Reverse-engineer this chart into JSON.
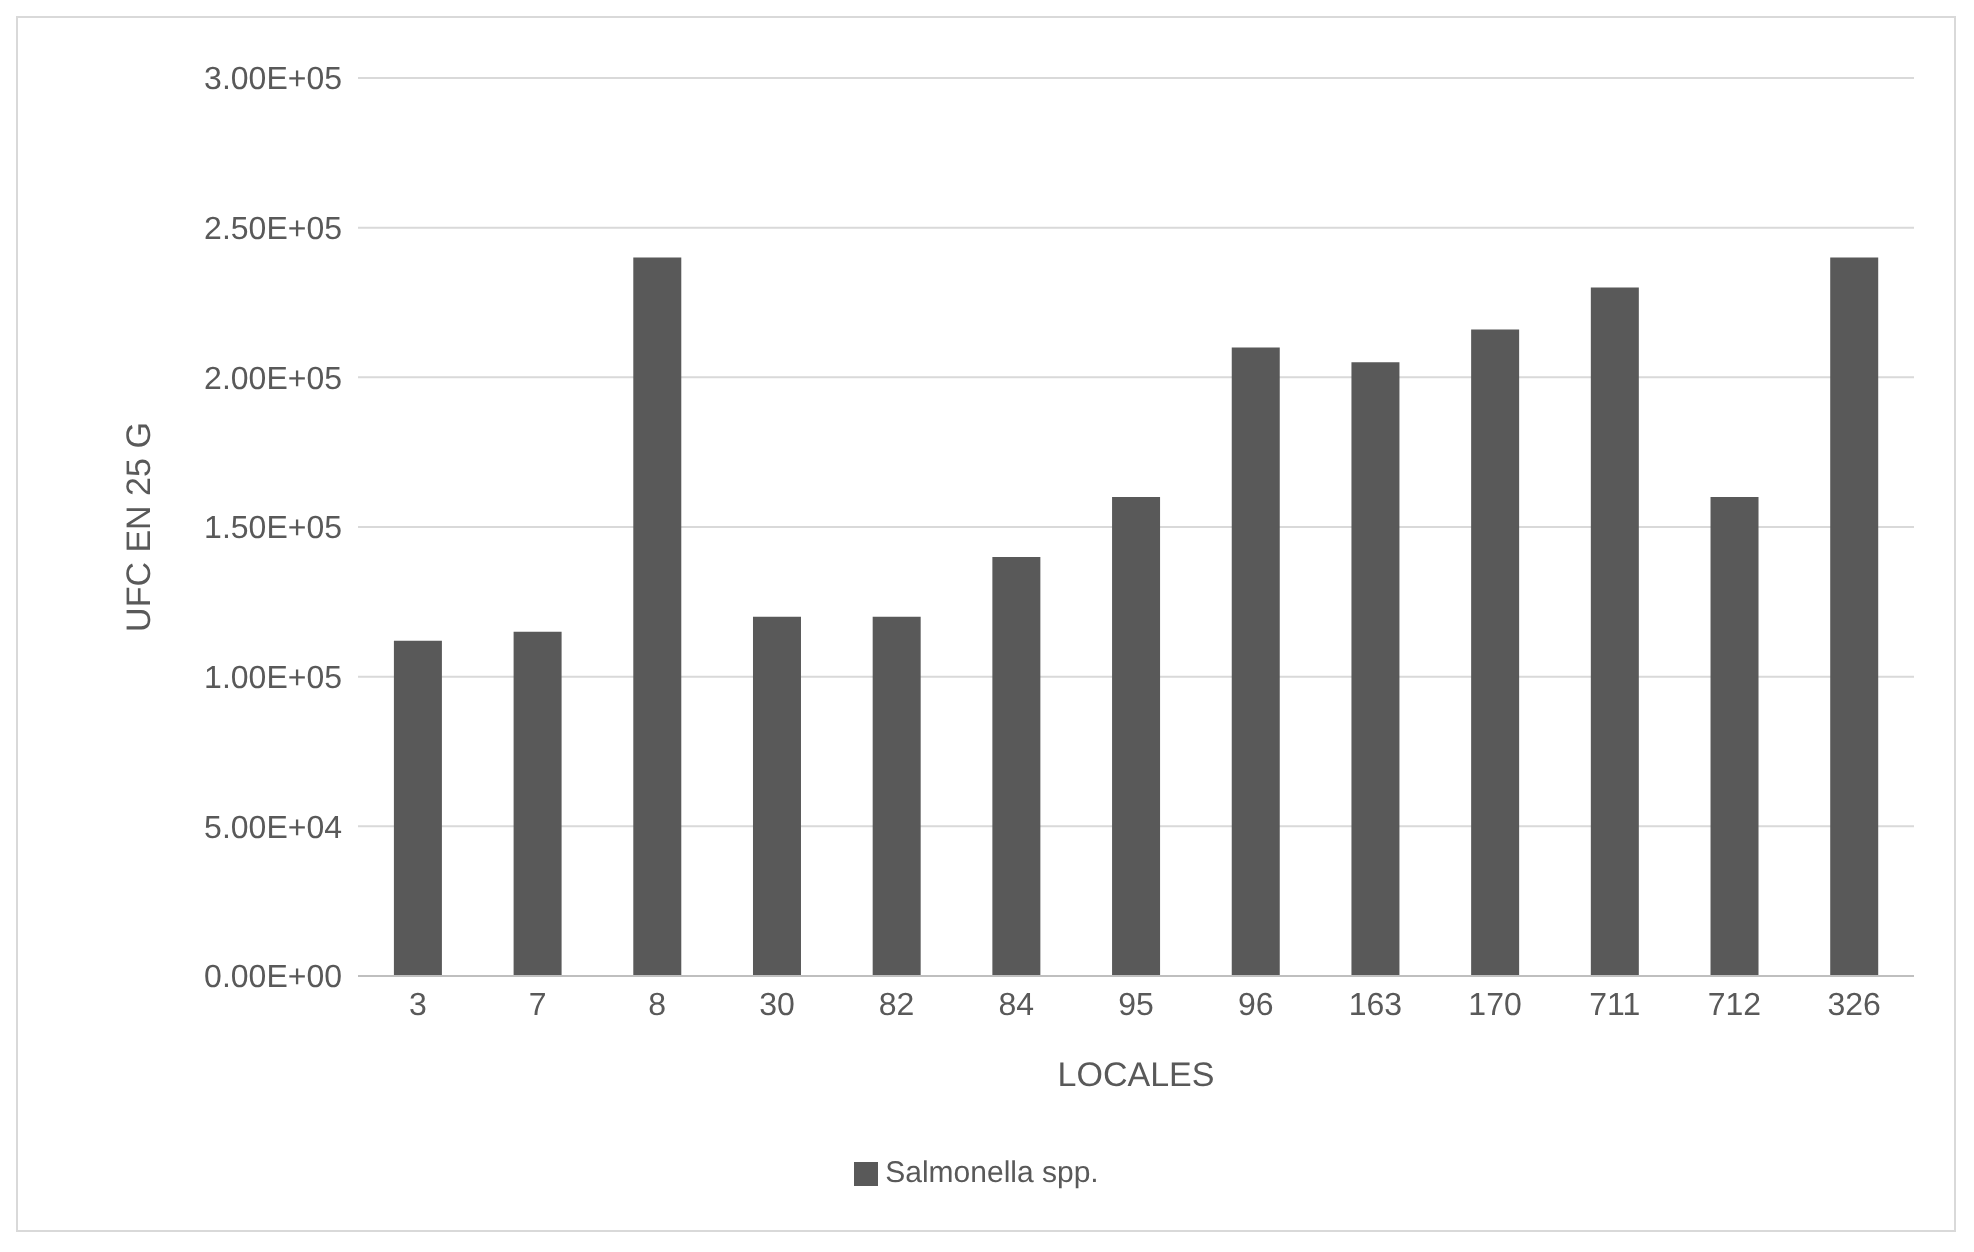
{
  "chart_data": {
    "type": "bar",
    "xlabel": "LOCALES",
    "ylabel": "UFC EN 25 G",
    "categories": [
      "3",
      "7",
      "8",
      "30",
      "82",
      "84",
      "95",
      "96",
      "163",
      "170",
      "711",
      "712",
      "326"
    ],
    "series": [
      {
        "name": "Salmonella spp.",
        "color": "#595959",
        "values": [
          112000,
          115000,
          240000,
          120000,
          120000,
          140000,
          160000,
          210000,
          205000,
          216000,
          230000,
          160000,
          240000
        ]
      }
    ],
    "ylim": [
      0,
      300000
    ],
    "yticks": [
      {
        "value": 0,
        "label": "0.00E+00"
      },
      {
        "value": 50000,
        "label": "5.00E+04"
      },
      {
        "value": 100000,
        "label": "1.00E+05"
      },
      {
        "value": 150000,
        "label": "1.50E+05"
      },
      {
        "value": 200000,
        "label": "2.00E+05"
      },
      {
        "value": 250000,
        "label": "2.50E+05"
      },
      {
        "value": 300000,
        "label": "3.00E+05"
      }
    ],
    "grid": "y",
    "legend": "bottom"
  }
}
